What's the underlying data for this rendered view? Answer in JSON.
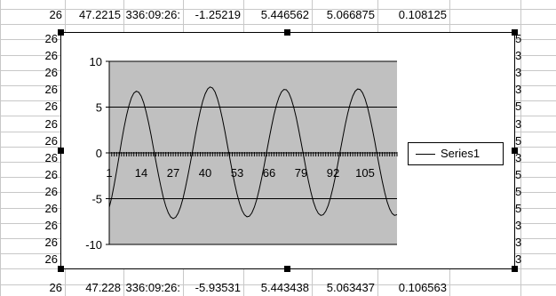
{
  "spreadsheet": {
    "top_row": [
      "26",
      "47.2215",
      "336:09:26:",
      "-1.25219",
      "5.446562",
      "5.066875",
      "0.108125"
    ],
    "bottom_row": [
      "26",
      "47.228",
      "336:09:26:",
      "-5.93531",
      "5.443438",
      "5.063437",
      "0.106563"
    ],
    "row_labels": [
      "26",
      "26",
      "26",
      "26",
      "26",
      "26",
      "26",
      "26",
      "26",
      "26",
      "26",
      "26",
      "26",
      "26"
    ],
    "right_edge_labels": [
      "5",
      "3",
      "3",
      "3",
      "5",
      "3",
      "5",
      "3",
      "5",
      "5",
      "5",
      "3",
      "3",
      "3"
    ]
  },
  "chart_data": {
    "type": "line",
    "title": "",
    "xlabel": "",
    "ylabel": "",
    "ylim": [
      -10,
      10
    ],
    "yticks": [
      -10,
      -5,
      0,
      5,
      10
    ],
    "xtick_labels": [
      "1",
      "14",
      "27",
      "40",
      "53",
      "66",
      "79",
      "92",
      "105"
    ],
    "n_points": 118,
    "plot_area_color": "#c0c0c0",
    "grid": true,
    "legend_position": "right",
    "series": [
      {
        "name": "Series1",
        "color": "#000000",
        "values": [
          -5.94,
          -4.85,
          -3.5,
          -1.97,
          -0.37,
          1.23,
          2.74,
          4.07,
          5.17,
          6.0,
          6.53,
          6.74,
          6.62,
          6.19,
          5.47,
          4.49,
          3.29,
          1.94,
          0.5,
          -0.97,
          -2.39,
          -3.71,
          -4.87,
          -5.83,
          -6.55,
          -7.0,
          -7.17,
          -7.03,
          -6.6,
          -5.9,
          -4.95,
          -3.79,
          -2.47,
          -1.05,
          0.43,
          1.91,
          3.31,
          4.57,
          5.63,
          6.45,
          6.98,
          7.2,
          7.09,
          6.66,
          5.93,
          4.94,
          3.73,
          2.37,
          0.92,
          -0.56,
          -2.01,
          -3.35,
          -4.54,
          -5.53,
          -6.28,
          -6.77,
          -6.98,
          -6.91,
          -6.55,
          -5.92,
          -5.05,
          -3.97,
          -2.72,
          -1.34,
          0.1,
          1.54,
          2.92,
          4.17,
          5.24,
          6.08,
          6.65,
          6.93,
          6.89,
          6.54,
          5.9,
          4.99,
          3.87,
          2.57,
          1.16,
          -0.29,
          -1.73,
          -3.09,
          -4.3,
          -5.32,
          -6.1,
          -6.61,
          -6.83,
          -6.76,
          -6.39,
          -5.75,
          -4.86,
          -3.76,
          -2.5,
          -1.12,
          0.33,
          1.77,
          3.13,
          4.36,
          5.4,
          6.21,
          6.74,
          6.98,
          6.92,
          6.56,
          5.91,
          5.0,
          3.87,
          2.57,
          1.17,
          -0.29,
          -1.74,
          -3.11,
          -4.33,
          -5.35,
          -6.12,
          -6.62,
          -6.83,
          -6.75
        ]
      }
    ]
  }
}
